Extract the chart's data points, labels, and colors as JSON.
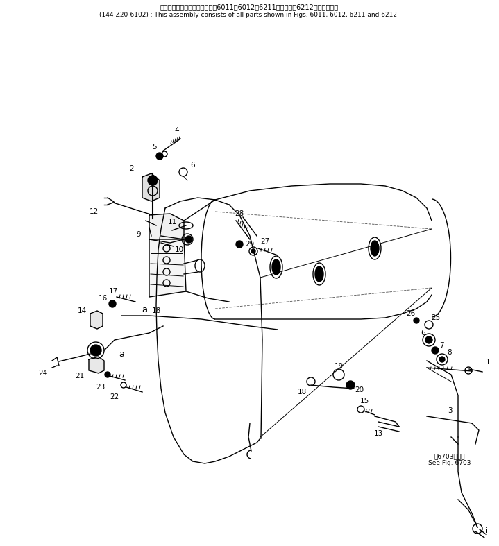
{
  "title_jp": "このアセンブリの構成部品は第6011、6012、6211図および第6212図を含みます",
  "title_en": "(144-Z20-6102) : This assembly consists of all parts shown in Figs. 6011, 6012, 6211 and 6212.",
  "see_fig_jp": "第6703図参照",
  "see_fig_en": "See Fig. 6703",
  "bg_color": "#ffffff",
  "line_color": "#000000",
  "lw_main": 1.0,
  "lw_thick": 1.5,
  "lw_thin": 0.7,
  "font_size_title_jp": 7.0,
  "font_size_title_en": 6.5,
  "font_size_label": 7.5,
  "font_size_annot": 6.5
}
